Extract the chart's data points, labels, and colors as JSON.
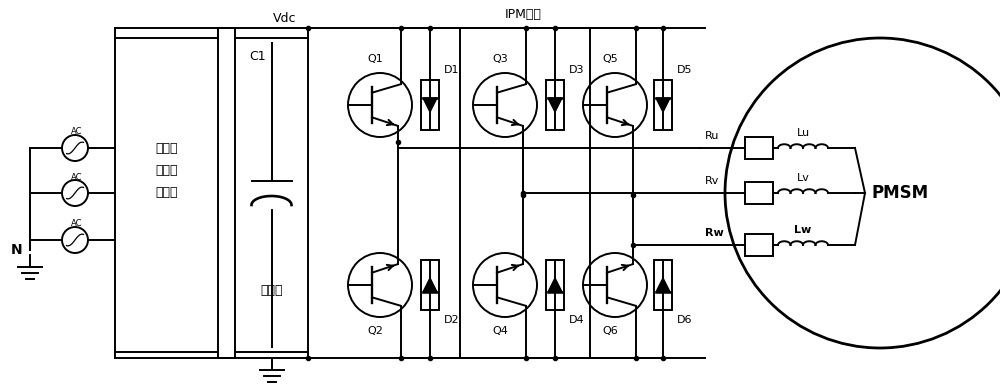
{
  "bg_color": "#ffffff",
  "line_color": "#000000",
  "figsize": [
    10.0,
    3.87
  ],
  "dpi": 100,
  "vdc_label": "Vdc",
  "ipm_label": "IPM模块",
  "rect_labels": [
    "不可控",
    "整流器",
    "整流器"
  ],
  "cap_label1": "C1",
  "cap_label2": "电容组",
  "N_label": "N",
  "pmsm_label": "PMSM",
  "top_Q": [
    "Q1",
    "Q3",
    "Q5"
  ],
  "bot_Q": [
    "Q2",
    "Q4",
    "Q6"
  ],
  "top_D": [
    "D1",
    "D3",
    "D5"
  ],
  "bot_D": [
    "D2",
    "D4",
    "D6"
  ],
  "phase_R": [
    "Ru",
    "Rv",
    "Rw"
  ],
  "phase_L": [
    "Lu",
    "Lv",
    "Lw"
  ],
  "phase_R_bold": [
    false,
    false,
    true
  ],
  "phase_L_bold": [
    false,
    false,
    true
  ]
}
